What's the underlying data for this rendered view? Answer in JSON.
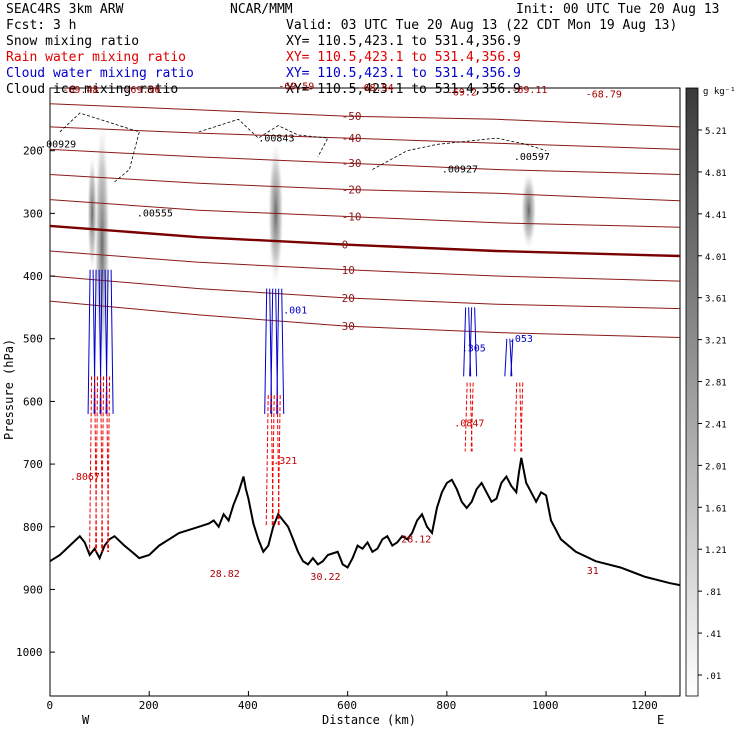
{
  "header": {
    "left1": "SEAC4RS  3km ARW",
    "left2": "Fcst:   3 h",
    "center": "NCAR/MMM",
    "init": "Init: 00 UTC Tue 20 Aug 13",
    "valid": "Valid: 03 UTC Tue 20 Aug 13 (22 CDT Mon 19 Aug 13)"
  },
  "fields": [
    {
      "name": "Snow mixing ratio",
      "xy": "XY= 110.5,423.1 to 531.4,356.9",
      "color": "#000000"
    },
    {
      "name": "Rain water mixing ratio",
      "xy": "XY= 110.5,423.1 to 531.4,356.9",
      "color": "#e00000"
    },
    {
      "name": "Cloud water mixing ratio",
      "xy": "XY= 110.5,423.1 to 531.4,356.9",
      "color": "#0000cc"
    },
    {
      "name": "Cloud ice mixing ratio",
      "xy": "XY= 110.5,423.1 to 531.4,356.9",
      "color": "#000000"
    }
  ],
  "colorbar": {
    "unit": "g kg⁻¹",
    "levels": [
      "5.21",
      "4.81",
      "4.41",
      "4.01",
      "3.61",
      "3.21",
      "2.81",
      "2.41",
      "2.01",
      "1.61",
      "1.21",
      ".81",
      ".41",
      ".01"
    ]
  },
  "axes": {
    "xlabel": "Distance (km)",
    "ylabel": "Pressure (hPa)",
    "left_end": "W",
    "right_end": "E"
  },
  "chart_data": {
    "type": "cross-section",
    "xlim": [
      0,
      1270
    ],
    "ylim": [
      1070,
      100
    ],
    "xticks": [
      0,
      200,
      400,
      600,
      800,
      1000,
      1200
    ],
    "yticks": [
      200,
      300,
      400,
      500,
      600,
      700,
      800,
      900,
      1000
    ],
    "terrain": [
      [
        0,
        855
      ],
      [
        20,
        845
      ],
      [
        40,
        830
      ],
      [
        60,
        815
      ],
      [
        70,
        825
      ],
      [
        80,
        845
      ],
      [
        90,
        835
      ],
      [
        100,
        850
      ],
      [
        110,
        830
      ],
      [
        120,
        820
      ],
      [
        130,
        815
      ],
      [
        150,
        830
      ],
      [
        165,
        840
      ],
      [
        180,
        850
      ],
      [
        200,
        845
      ],
      [
        220,
        830
      ],
      [
        240,
        820
      ],
      [
        260,
        810
      ],
      [
        280,
        805
      ],
      [
        300,
        800
      ],
      [
        320,
        795
      ],
      [
        330,
        790
      ],
      [
        340,
        800
      ],
      [
        350,
        780
      ],
      [
        360,
        790
      ],
      [
        370,
        765
      ],
      [
        380,
        745
      ],
      [
        390,
        720
      ],
      [
        395,
        740
      ],
      [
        400,
        755
      ],
      [
        410,
        795
      ],
      [
        420,
        820
      ],
      [
        430,
        840
      ],
      [
        440,
        830
      ],
      [
        450,
        800
      ],
      [
        460,
        780
      ],
      [
        470,
        790
      ],
      [
        480,
        800
      ],
      [
        490,
        820
      ],
      [
        500,
        840
      ],
      [
        510,
        855
      ],
      [
        520,
        860
      ],
      [
        530,
        850
      ],
      [
        540,
        860
      ],
      [
        550,
        855
      ],
      [
        560,
        845
      ],
      [
        580,
        840
      ],
      [
        590,
        860
      ],
      [
        600,
        865
      ],
      [
        610,
        850
      ],
      [
        620,
        830
      ],
      [
        630,
        835
      ],
      [
        640,
        825
      ],
      [
        650,
        840
      ],
      [
        660,
        835
      ],
      [
        670,
        820
      ],
      [
        680,
        815
      ],
      [
        690,
        830
      ],
      [
        700,
        825
      ],
      [
        710,
        815
      ],
      [
        720,
        820
      ],
      [
        730,
        810
      ],
      [
        740,
        790
      ],
      [
        750,
        780
      ],
      [
        760,
        800
      ],
      [
        770,
        810
      ],
      [
        780,
        770
      ],
      [
        790,
        745
      ],
      [
        800,
        730
      ],
      [
        810,
        725
      ],
      [
        820,
        740
      ],
      [
        830,
        760
      ],
      [
        840,
        770
      ],
      [
        850,
        760
      ],
      [
        860,
        740
      ],
      [
        870,
        730
      ],
      [
        880,
        745
      ],
      [
        890,
        760
      ],
      [
        900,
        755
      ],
      [
        910,
        730
      ],
      [
        920,
        720
      ],
      [
        930,
        735
      ],
      [
        940,
        745
      ],
      [
        945,
        715
      ],
      [
        950,
        690
      ],
      [
        960,
        730
      ],
      [
        970,
        745
      ],
      [
        980,
        760
      ],
      [
        990,
        745
      ],
      [
        1000,
        750
      ],
      [
        1010,
        790
      ],
      [
        1030,
        820
      ],
      [
        1060,
        840
      ],
      [
        1100,
        855
      ],
      [
        1150,
        865
      ],
      [
        1200,
        880
      ],
      [
        1250,
        890
      ],
      [
        1270,
        893
      ]
    ],
    "temp_contours": [
      {
        "label": "-50",
        "pts": [
          [
            0,
            125
          ],
          [
            300,
            135
          ],
          [
            600,
            145
          ],
          [
            900,
            150
          ],
          [
            1270,
            162
          ]
        ]
      },
      {
        "label": "-40",
        "pts": [
          [
            0,
            162
          ],
          [
            300,
            172
          ],
          [
            600,
            180
          ],
          [
            900,
            188
          ],
          [
            1270,
            198
          ]
        ]
      },
      {
        "label": "-30",
        "pts": [
          [
            0,
            198
          ],
          [
            300,
            210
          ],
          [
            600,
            220
          ],
          [
            900,
            230
          ],
          [
            1270,
            238
          ]
        ]
      },
      {
        "label": "-20",
        "pts": [
          [
            0,
            238
          ],
          [
            300,
            252
          ],
          [
            600,
            262
          ],
          [
            900,
            268
          ],
          [
            1270,
            280
          ]
        ]
      },
      {
        "label": "-10",
        "pts": [
          [
            0,
            278
          ],
          [
            300,
            295
          ],
          [
            600,
            305
          ],
          [
            900,
            315
          ],
          [
            1270,
            322
          ]
        ]
      },
      {
        "label": "0",
        "pts": [
          [
            0,
            320
          ],
          [
            300,
            338
          ],
          [
            600,
            350
          ],
          [
            900,
            360
          ],
          [
            1270,
            368
          ]
        ]
      },
      {
        "label": "10",
        "pts": [
          [
            0,
            360
          ],
          [
            300,
            378
          ],
          [
            600,
            390
          ],
          [
            900,
            400
          ],
          [
            1270,
            408
          ]
        ]
      },
      {
        "label": "20",
        "pts": [
          [
            0,
            400
          ],
          [
            300,
            420
          ],
          [
            600,
            435
          ],
          [
            900,
            445
          ],
          [
            1270,
            452
          ]
        ]
      },
      {
        "label": "30",
        "pts": [
          [
            0,
            440
          ],
          [
            300,
            462
          ],
          [
            600,
            480
          ],
          [
            900,
            490
          ],
          [
            1270,
            498
          ]
        ]
      }
    ],
    "labels": [
      {
        "text": "-69.48",
        "x": 25,
        "p": 108,
        "color": "#aa0000"
      },
      {
        "text": "-69.96",
        "x": 150,
        "p": 108,
        "color": "#aa0000"
      },
      {
        "text": "-69.59",
        "x": 460,
        "p": 102,
        "color": "#aa0000"
      },
      {
        "text": "-68.54",
        "x": 620,
        "p": 105,
        "color": "#aa0000"
      },
      {
        "text": "-69.2",
        "x": 800,
        "p": 112,
        "color": "#aa0000"
      },
      {
        "text": "-69.11",
        "x": 930,
        "p": 108,
        "color": "#aa0000"
      },
      {
        "text": "-68.79",
        "x": 1080,
        "p": 115,
        "color": "#aa0000"
      },
      {
        "text": ".00929",
        "x": -20,
        "p": 195,
        "color": "#000000"
      },
      {
        "text": ".00843",
        "x": 420,
        "p": 185,
        "color": "#000000"
      },
      {
        "text": ".00555",
        "x": 175,
        "p": 305,
        "color": "#000000"
      },
      {
        "text": ".00927",
        "x": 790,
        "p": 235,
        "color": "#000000"
      },
      {
        "text": ".00597",
        "x": 935,
        "p": 215,
        "color": "#000000"
      },
      {
        "text": ".001",
        "x": 470,
        "p": 460,
        "color": "#0000cc"
      },
      {
        "text": ".305",
        "x": 830,
        "p": 520,
        "color": "#0000cc"
      },
      {
        "text": ".053",
        "x": 925,
        "p": 505,
        "color": "#0000cc"
      },
      {
        "text": ".0847",
        "x": 815,
        "p": 640,
        "color": "#cc0000"
      },
      {
        "text": ".321",
        "x": 450,
        "p": 700,
        "color": "#cc0000"
      },
      {
        "text": ".8067",
        "x": 40,
        "p": 725,
        "color": "#cc0000"
      },
      {
        "text": "28.82",
        "x": 322,
        "p": 880,
        "color": "#aa0000"
      },
      {
        "text": "30.22",
        "x": 525,
        "p": 885,
        "color": "#aa0000"
      },
      {
        "text": "28.12",
        "x": 708,
        "p": 825,
        "color": "#aa0000"
      },
      {
        "text": "31",
        "x": 1082,
        "p": 875,
        "color": "#aa0000"
      }
    ]
  }
}
